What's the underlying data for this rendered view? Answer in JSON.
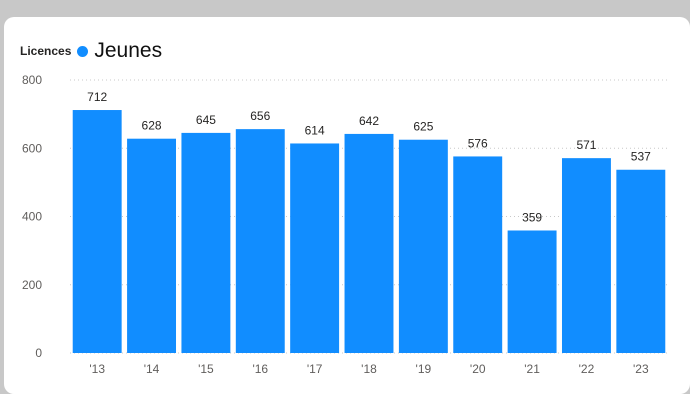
{
  "legend": {
    "title": "Licences"
  },
  "chart_data": {
    "type": "bar",
    "categories": [
      "'13",
      "'14",
      "'15",
      "'16",
      "'17",
      "'18",
      "'19",
      "'20",
      "'21",
      "'22",
      "'23"
    ],
    "series": [
      {
        "name": "Jeunes",
        "color": "#118DFF",
        "values": [
          712,
          628,
          645,
          656,
          614,
          642,
          625,
          576,
          359,
          571,
          537
        ]
      }
    ],
    "ylim": [
      0,
      800
    ],
    "yticks": [
      0,
      200,
      400,
      600,
      800
    ],
    "grid": true,
    "legend_position": "top-left",
    "data_labels": true
  }
}
